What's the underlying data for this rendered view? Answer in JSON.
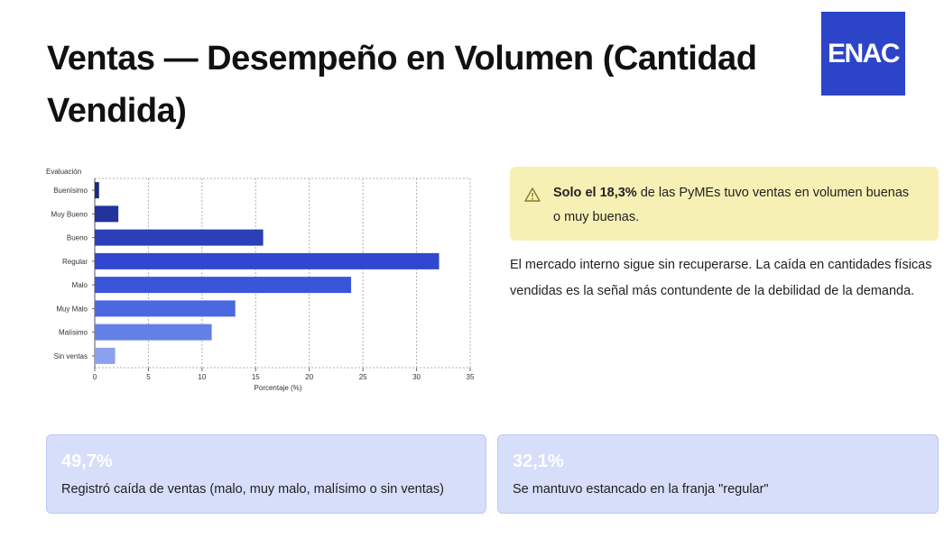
{
  "header": {
    "title": "Ventas — Desempeño en Volumen (Cantidad Vendida)",
    "logo_text": "ENAC",
    "logo_color": "#2c45c8"
  },
  "chart_data": {
    "type": "bar",
    "orientation": "horizontal",
    "ylabel": "Evaluación",
    "xlabel": "Porcentaje (%)",
    "categories": [
      "Buenísimo",
      "Muy Bueno",
      "Bueno",
      "Regular",
      "Malo",
      "Muy Malo",
      "Malísimo",
      "Sin ventas"
    ],
    "values": [
      0.4,
      2.2,
      15.7,
      32.1,
      23.9,
      13.1,
      10.9,
      1.9
    ],
    "colors": [
      "#1b2a80",
      "#22339b",
      "#2a3fb8",
      "#3048cf",
      "#3a55d8",
      "#4c68e0",
      "#6480e6",
      "#8ba0ee"
    ],
    "xlim": [
      0,
      35
    ],
    "xticks": [
      "0",
      "5",
      "10",
      "15",
      "20",
      "25",
      "30",
      "35"
    ],
    "grid": "vertical dashed"
  },
  "callout": {
    "icon": "warning-icon",
    "bold": "Solo el 18,3%",
    "text": " de las PyMEs tuvo ventas en volumen buenas o muy buenas."
  },
  "body": {
    "paragraph": "El mercado interno sigue sin recuperarse. La caída en cantidades físicas vendidas es la señal más contundente de la debilidad de la demanda."
  },
  "cards": [
    {
      "value": "49,7%",
      "description": "Registró caída de ventas (malo, muy malo, malísimo o sin ventas)"
    },
    {
      "value": "32,1%",
      "description": "Se mantuvo estancado en la franja \"regular\""
    }
  ]
}
